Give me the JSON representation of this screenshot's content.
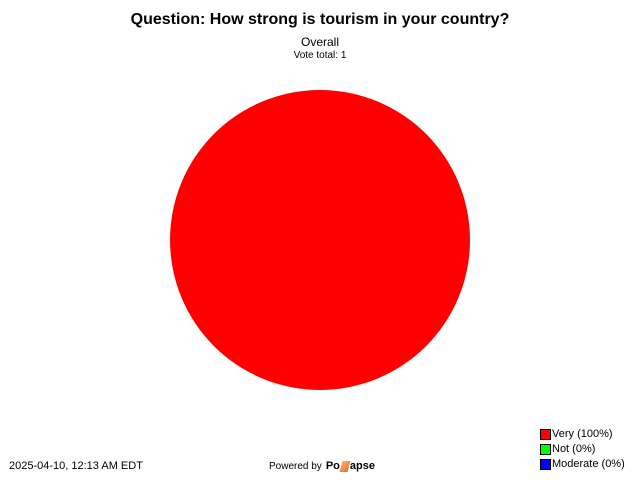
{
  "chart_data": {
    "type": "pie",
    "title": "Question: How strong is tourism in your country?",
    "subtitle": "Overall",
    "vote_total_label": "Vote total: 1",
    "slices": [
      {
        "label": "Very",
        "percent": 100,
        "color": "#ff0000",
        "legend": "Very (100%)"
      },
      {
        "label": "Not",
        "percent": 0,
        "color": "#00ff00",
        "legend": "Not (0%)"
      },
      {
        "label": "Moderate",
        "percent": 0,
        "color": "#0000ff",
        "legend": "Moderate (0%)"
      }
    ],
    "legend_position": "bottom-right"
  },
  "footer": {
    "timestamp": "2025-04-10, 12:13 AM EDT",
    "powered_by": "Powered by",
    "logo_text_a": "Po",
    "logo_text_b": "apse"
  }
}
